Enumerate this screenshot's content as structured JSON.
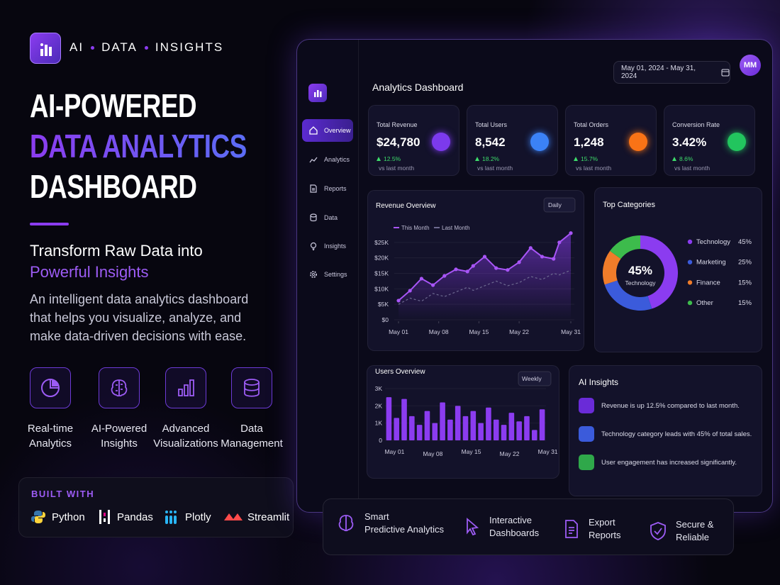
{
  "brand": {
    "words": [
      "AI",
      "DATA",
      "INSIGHTS"
    ]
  },
  "hero": {
    "title_lines": [
      "AI-POWERED",
      "DATA ANALYTICS",
      "DASHBOARD"
    ],
    "subtitle_lines": [
      "Transform Raw Data into",
      "Powerful Insights"
    ],
    "description": "An intelligent data analytics dashboard that helps you visualize, analyze, and make data-driven decisions with ease."
  },
  "features": [
    {
      "lines": [
        "Real-time",
        "Analytics"
      ]
    },
    {
      "lines": [
        "AI-Powered",
        "Insights"
      ]
    },
    {
      "lines": [
        "Advanced",
        "Visualizations"
      ]
    },
    {
      "lines": [
        "Data",
        "Management"
      ]
    }
  ],
  "built_with": {
    "title": "BUILT WITH",
    "items": [
      "Python",
      "Pandas",
      "Plotly",
      "Streamlit"
    ]
  },
  "dashboard": {
    "title": "Analytics Dashboard",
    "date_range": "May 01, 2024 - May 31, 2024",
    "avatar": "MM",
    "nav": [
      "Overview",
      "Analytics",
      "Reports",
      "Data",
      "Insights",
      "Settings"
    ],
    "kpis": [
      {
        "label": "Total Revenue",
        "value": "$24,780",
        "change": "12.5%",
        "note": "vs last month"
      },
      {
        "label": "Total Users",
        "value": "8,542",
        "change": "18.2%",
        "note": "vs last month"
      },
      {
        "label": "Total Orders",
        "value": "1,248",
        "change": "15.7%",
        "note": "vs last month"
      },
      {
        "label": "Conversion Rate",
        "value": "3.42%",
        "change": "8.6%",
        "note": "vs last month"
      }
    ],
    "insights": {
      "title": "AI Insights",
      "items": [
        "Revenue is up 12.5% compared to last month.",
        "Technology category leads with 45% of total sales.",
        "User engagement has increased significantly."
      ]
    }
  },
  "chart_data": [
    {
      "type": "line",
      "title": "Revenue Overview",
      "control": "Daily",
      "x": [
        1,
        3,
        5,
        7,
        9,
        11,
        13,
        14,
        16,
        18,
        20,
        22,
        24,
        26,
        28,
        29,
        31
      ],
      "series": [
        {
          "name": "This Month",
          "color": "#a855f7",
          "values": [
            6200,
            9400,
            13300,
            11200,
            14200,
            16300,
            15600,
            17400,
            20400,
            16700,
            16100,
            18600,
            23200,
            20400,
            19700,
            25000,
            28000
          ]
        },
        {
          "name": "Last Month",
          "color": "#6d6a90",
          "values": [
            5000,
            7000,
            6000,
            8500,
            7500,
            9000,
            10500,
            9500,
            11000,
            12500,
            11000,
            12000,
            14000,
            13000,
            15000,
            14500,
            16000
          ]
        }
      ],
      "xlim": [
        1,
        31
      ],
      "xticks": [
        {
          "value": 1,
          "label": "May 01"
        },
        {
          "value": 8,
          "label": "May 08"
        },
        {
          "value": 15,
          "label": "May 15"
        },
        {
          "value": 22,
          "label": "May 22"
        },
        {
          "value": 31,
          "label": "May 31"
        }
      ],
      "ylim": [
        0,
        30000
      ],
      "yticks": [
        {
          "value": 0,
          "label": "$0"
        },
        {
          "value": 5000,
          "label": "$5K"
        },
        {
          "value": 10000,
          "label": "$10K"
        },
        {
          "value": 15000,
          "label": "$15K"
        },
        {
          "value": 20000,
          "label": "$20K"
        },
        {
          "value": 25000,
          "label": "$25K"
        }
      ]
    },
    {
      "type": "pie",
      "title": "Top Categories",
      "categories": [
        "Technology",
        "Marketing",
        "Finance",
        "Other"
      ],
      "values": [
        45,
        25,
        15,
        15
      ],
      "value_labels": [
        "45%",
        "25%",
        "15%",
        "15%"
      ],
      "colors": [
        "#8b3cf0",
        "#3b5bdb",
        "#f07c2a",
        "#3dbb4c"
      ]
    },
    {
      "type": "bar",
      "title": "Users Overview",
      "control": "Weekly",
      "categories": [
        "May 01",
        null,
        null,
        null,
        null,
        "May 08",
        null,
        null,
        null,
        null,
        "May 15",
        null,
        null,
        null,
        null,
        "May 22",
        null,
        null,
        null,
        null,
        "May 31"
      ],
      "values": [
        2500,
        1300,
        2400,
        1400,
        900,
        1700,
        1000,
        2200,
        1200,
        2000,
        1400,
        1700,
        1000,
        1900,
        1200,
        900,
        1600,
        1100,
        1400,
        600,
        1800
      ],
      "color": "#8b3cf0",
      "ylim": [
        0,
        3000
      ],
      "yticks": [
        0,
        {
          "value": 1000,
          "label": "1K"
        },
        {
          "value": 2000,
          "label": "2K"
        },
        {
          "value": 3000,
          "label": "3K"
        }
      ]
    }
  ],
  "bottom_features": [
    {
      "lines": [
        "Smart",
        "Predictive Analytics"
      ]
    },
    {
      "lines": [
        "Interactive",
        "Dashboards"
      ]
    },
    {
      "lines": [
        "Export",
        "Reports"
      ]
    },
    {
      "lines": [
        "Secure &",
        "Reliable"
      ]
    }
  ]
}
